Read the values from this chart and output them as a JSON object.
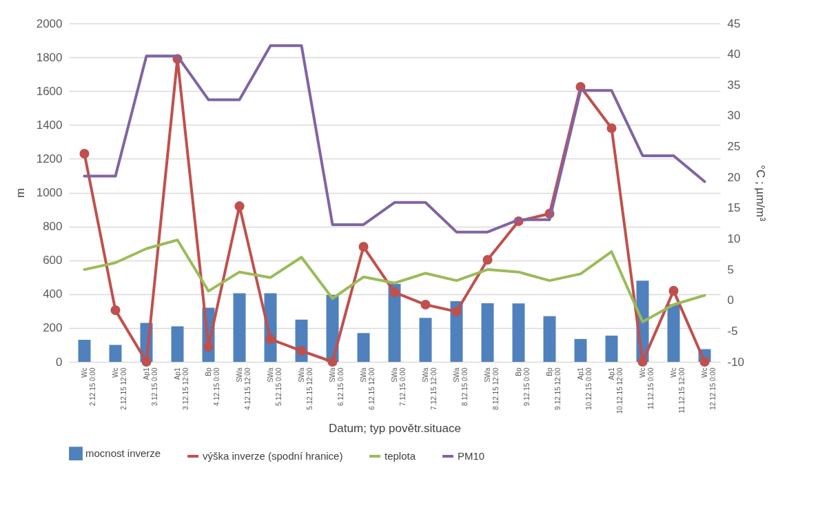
{
  "chart_data": {
    "type": "bar",
    "xlabel": "Datum; typ povětr.situace",
    "ylabel": "m",
    "y2label": "°C ; µm/m³",
    "categories": [
      "Wc\n2.12.15 0:00",
      "Wc\n2.12.15 12:00",
      "Ap1\n3.12.15 0:00",
      "Ap1\n3.12.15 12:00",
      "Bp\n4.12.15 0:00",
      "SWa\n4.12.15 12:00",
      "SWa\n5.12.15 0:00",
      "SWa\n5.12.15 12:00",
      "SWa\n6.12.15 0:00",
      "SWa\n6.12.15 12:00",
      "SWa\n7.12.15 0:00",
      "SWa\n7.12.15 12:00",
      "SWa\n8.12.15 0:00",
      "SWa\n8.12.15 12:00",
      "Bp\n9.12.15 0:00",
      "Bp\n9.12.15 12:00",
      "Ap1\n10.12.15 0:00",
      "Ap1\n10.12.15 12:00",
      "Wc\n11.12.15 0:00",
      "Wc\n11.12.15 12:00",
      "Wc\n12.12.15 0:00"
    ],
    "series": [
      {
        "name": "mocnost inverze",
        "color": "#4f81bd",
        "values": [
          130,
          100,
          230,
          210,
          320,
          405,
          405,
          250,
          395,
          170,
          460,
          260,
          358,
          346,
          345,
          270,
          135,
          155,
          480,
          340,
          75
        ]
      },
      {
        "name": "výška inverze (spodní hranice)",
        "type": "line",
        "marker": "circle",
        "color": "#c0504d",
        "values": [
          1230,
          305,
          0,
          1790,
          90,
          920,
          134,
          65,
          0,
          680,
          411,
          338,
          297,
          603,
          831,
          876,
          1625,
          1381,
          0,
          420,
          0
        ]
      },
      {
        "name": "teplota",
        "type": "line",
        "axis": "y2",
        "color": "#9bbb59",
        "values": [
          5.0,
          6.1,
          8.4,
          9.8,
          1.5,
          4.6,
          3.7,
          7.0,
          0.3,
          3.8,
          2.8,
          4.4,
          3.2,
          5.0,
          4.6,
          3.2,
          4.3,
          7.9,
          -3.5,
          -0.7,
          0.8
        ]
      },
      {
        "name": "PM10",
        "type": "line",
        "axis": "y2",
        "color": "#8064a2",
        "values": [
          20.2,
          20.2,
          39.7,
          39.7,
          32.6,
          32.6,
          41.4,
          41.4,
          12.3,
          12.3,
          15.9,
          15.9,
          11.1,
          11.1,
          13.1,
          13.1,
          34.1,
          34.1,
          23.5,
          23.5,
          19.3
        ]
      }
    ],
    "ylim": [
      0,
      2000
    ],
    "yticks": [
      0,
      200,
      400,
      600,
      800,
      1000,
      1200,
      1400,
      1600,
      1800,
      2000
    ],
    "y2lim": [
      -10,
      45
    ],
    "y2ticks": [
      -10,
      -5,
      0,
      5,
      10,
      15,
      20,
      25,
      30,
      35,
      40,
      45
    ],
    "grid": "y",
    "legend": "bottom"
  }
}
